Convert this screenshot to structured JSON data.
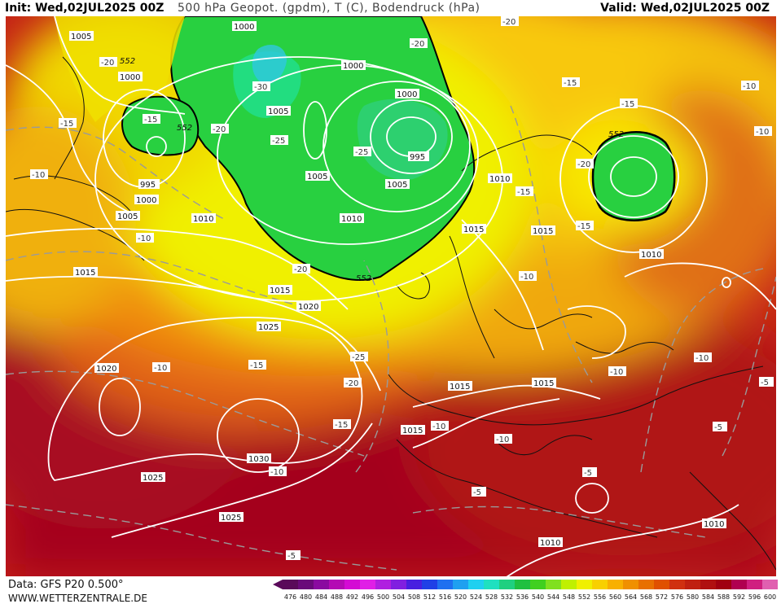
{
  "header": {
    "init": "Init: Wed,02JUL2025 00Z",
    "title": "500 hPa Geopot. (gpdm), T (C), Bodendruck (hPa)",
    "valid": "Valid: Wed,02JUL2025 00Z"
  },
  "footer": {
    "source": "Data: GFS P20 0.500°",
    "website": "WWW.WETTERZENTRALE.DE"
  },
  "colors": {
    "geopotential_scale": [
      "#5a0a5a",
      "#6a0a7a",
      "#8a0aa0",
      "#b40ab4",
      "#d40ad4",
      "#e020e6",
      "#b020e0",
      "#8020e0",
      "#4820e0",
      "#2040e6",
      "#2070f0",
      "#20a0f0",
      "#20d0f0",
      "#20e0c0",
      "#20d080",
      "#20c040",
      "#40d020",
      "#80e020",
      "#c0f000",
      "#f0f000",
      "#f8d000",
      "#f8b000",
      "#f09000",
      "#e87000",
      "#e05000",
      "#d03010",
      "#c02010",
      "#b01010",
      "#a00010",
      "#b00050",
      "#d02080",
      "#e060b0"
    ],
    "contour_white": "#ffffff",
    "temperature_dashed": "#9a9a9a"
  },
  "colorbar": {
    "labels": [
      "476",
      "480",
      "484",
      "488",
      "492",
      "496",
      "500",
      "504",
      "508",
      "512",
      "516",
      "520",
      "524",
      "528",
      "532",
      "536",
      "540",
      "544",
      "548",
      "552",
      "556",
      "560",
      "564",
      "568",
      "572",
      "576",
      "580",
      "584",
      "588",
      "592",
      "596",
      "600"
    ]
  },
  "map_labels": {
    "pressure": [
      "1005",
      "1000",
      "1000",
      "1000",
      "1005",
      "995",
      "1000",
      "995",
      "1005",
      "1010",
      "1005",
      "1000",
      "1005",
      "1010",
      "1010",
      "1010",
      "1015",
      "1015",
      "1015",
      "1020",
      "1025",
      "1020",
      "1030",
      "1025",
      "1025",
      "1015",
      "1015",
      "1015",
      "1015",
      "1010",
      "1010"
    ],
    "temperature": [
      "-20",
      "-15",
      "-15",
      "-10",
      "-10",
      "-20",
      "-30",
      "-25",
      "-25",
      "-20",
      "-20",
      "-20",
      "-15",
      "-15",
      "-15",
      "-20",
      "-10",
      "-10",
      "-10",
      "-10",
      "-10",
      "-15",
      "-15",
      "-25",
      "-20",
      "-15",
      "-10",
      "-10",
      "-5",
      "-5",
      "-5",
      "-5",
      "-5",
      "-10",
      "-10"
    ],
    "geopotential": [
      "552",
      "552",
      "552",
      "552"
    ]
  }
}
